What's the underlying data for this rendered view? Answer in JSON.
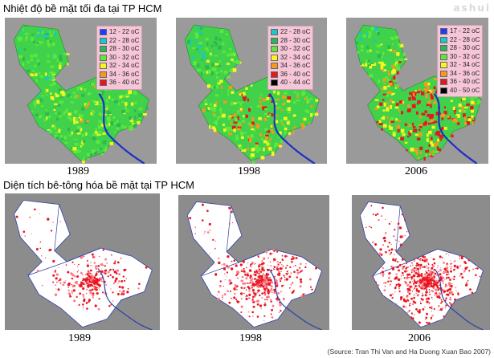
{
  "header": {
    "title_temperature": "Nhiệt độ bề mặt tối đa tại TP HCM",
    "title_concrete": "Diện tích bê-tông hóa bề mặt tại TP HCM",
    "watermark": "ashui"
  },
  "temperature_maps": [
    {
      "year": "1989",
      "legend": [
        {
          "label": "12 - 22 oC",
          "color": "#1e3cff"
        },
        {
          "label": "22 - 28 oC",
          "color": "#19c8c8"
        },
        {
          "label": "28 - 30 oC",
          "color": "#2fb552"
        },
        {
          "label": "30 - 32 oC",
          "color": "#5ee83b"
        },
        {
          "label": "32 - 34 oC",
          "color": "#f7f71e"
        },
        {
          "label": "34 - 36 oC",
          "color": "#f59a1e"
        },
        {
          "label": "36 - 40 oC",
          "color": "#e8161e"
        }
      ]
    },
    {
      "year": "1998",
      "legend": [
        {
          "label": "22 - 28 oC",
          "color": "#19c8c8"
        },
        {
          "label": "28 - 30 oC",
          "color": "#2fb552"
        },
        {
          "label": "30 - 32 oC",
          "color": "#5ee83b"
        },
        {
          "label": "32 - 34 oC",
          "color": "#f7f71e"
        },
        {
          "label": "34 - 36 oC",
          "color": "#f59a1e"
        },
        {
          "label": "36 - 40 oC",
          "color": "#e8161e"
        },
        {
          "label": "40 - 44 oC",
          "color": "#000000"
        }
      ]
    },
    {
      "year": "2006",
      "legend": [
        {
          "label": "17 - 22 oC",
          "color": "#1e3cff"
        },
        {
          "label": "22 - 28 oC",
          "color": "#19c8c8"
        },
        {
          "label": "28 - 30 oC",
          "color": "#2fb552"
        },
        {
          "label": "30 - 32 oC",
          "color": "#5ee83b"
        },
        {
          "label": "32 - 34 oC",
          "color": "#f7f71e"
        },
        {
          "label": "34 - 36 oC",
          "color": "#f59a1e"
        },
        {
          "label": "36 - 40 oC",
          "color": "#e8161e"
        },
        {
          "label": "40 - 50 oC",
          "color": "#000000"
        }
      ]
    }
  ],
  "concrete_maps": [
    {
      "year": "1989"
    },
    {
      "year": "1998"
    },
    {
      "year": "2006"
    }
  ],
  "source": "(Source: Tran Thi Van and Ha Duong Xuan Bao 2007)"
}
